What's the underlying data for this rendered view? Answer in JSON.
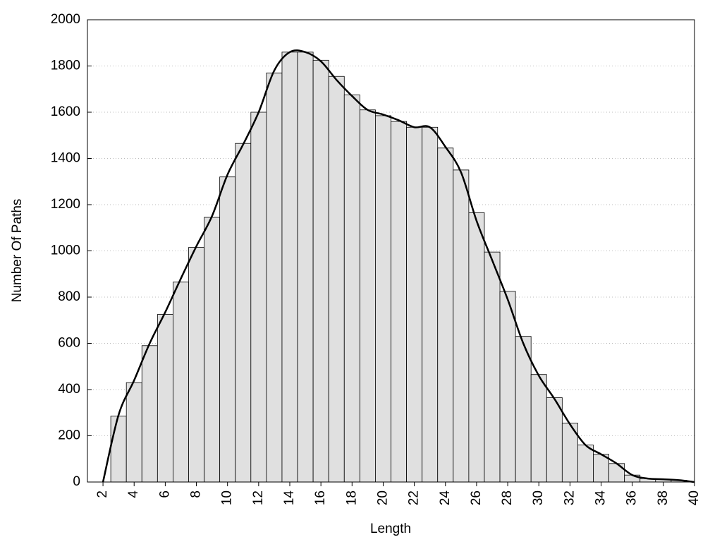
{
  "chart_data": {
    "type": "histogram",
    "xlabel": "Length",
    "ylabel": "Number Of Paths",
    "bins": [
      2.5,
      3.5,
      4.5,
      5.5,
      6.5,
      7.5,
      8.5,
      9.5,
      10.5,
      11.5,
      12.5,
      13.5,
      14.5,
      15.5,
      16.5,
      17.5,
      18.5,
      19.5,
      20.5,
      21.5,
      22.5,
      23.5,
      24.5,
      25.5,
      26.5,
      27.5,
      28.5,
      29.5,
      30.5,
      31.5,
      32.5,
      33.5,
      34.5,
      35.5,
      36.5,
      37.5,
      38.5,
      39.5
    ],
    "values": [
      285,
      430,
      590,
      725,
      865,
      1015,
      1145,
      1320,
      1465,
      1600,
      1770,
      1860,
      1860,
      1825,
      1755,
      1675,
      1610,
      1585,
      1560,
      1535,
      1535,
      1445,
      1350,
      1165,
      995,
      825,
      630,
      465,
      365,
      255,
      160,
      120,
      80,
      30,
      15,
      12,
      8
    ],
    "color": "#e0e0e0",
    "curve": {
      "color": "#000000",
      "x": [
        2,
        3,
        4,
        5,
        6,
        7,
        8,
        9,
        10,
        11,
        12,
        13,
        14,
        15,
        16,
        17,
        18,
        19,
        20,
        21,
        22,
        23,
        24,
        25,
        26,
        27,
        28,
        29,
        30,
        31,
        32,
        33,
        34,
        35,
        36,
        37,
        38,
        39,
        40
      ],
      "values": [
        0,
        290,
        440,
        600,
        735,
        880,
        1020,
        1150,
        1330,
        1460,
        1600,
        1780,
        1860,
        1860,
        1820,
        1740,
        1670,
        1610,
        1590,
        1565,
        1535,
        1535,
        1450,
        1340,
        1130,
        960,
        790,
        600,
        460,
        360,
        250,
        160,
        120,
        80,
        30,
        15,
        12,
        8,
        0
      ]
    },
    "xlim": [
      1,
      40
    ],
    "xticks": [
      2,
      4,
      6,
      8,
      10,
      12,
      14,
      16,
      18,
      20,
      22,
      24,
      26,
      28,
      30,
      32,
      34,
      36,
      38,
      40
    ],
    "ylim": [
      0,
      2000
    ],
    "yticks": [
      0,
      200,
      400,
      600,
      800,
      1000,
      1200,
      1400,
      1600,
      1800,
      2000
    ],
    "grid": true
  }
}
